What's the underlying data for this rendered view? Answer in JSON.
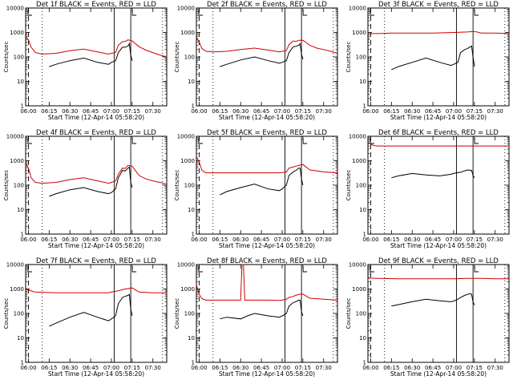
{
  "colors": {
    "events": "#000000",
    "lld": "#d00000",
    "frame": "#000000"
  },
  "shared": {
    "ylabel": "Counts/sec",
    "xlabel": "Start Time (12-Apr-14 05:58:20)",
    "xticks": [
      "06:00",
      "06:15",
      "06:30",
      "06:45",
      "07:00",
      "07:15",
      "07:30"
    ],
    "yticks": [
      "1",
      "10",
      "100",
      "1000",
      "10000"
    ]
  },
  "chart_data": [
    {
      "type": "line",
      "title": "Det 1f BLACK = Events, RED = LLD",
      "ylim": [
        1,
        10000
      ],
      "yscale": "log",
      "series": [
        {
          "x": [
            "05:58",
            "06:00",
            "06:02",
            "06:05",
            "06:10",
            "06:20",
            "06:30",
            "06:40",
            "06:50",
            "06:58",
            "07:00",
            "07:03",
            "07:05",
            "07:08",
            "07:10",
            "07:12",
            "07:15",
            "07:20",
            "07:25",
            "07:30",
            "07:35",
            "07:40"
          ],
          "values": [
            700,
            500,
            250,
            150,
            130,
            140,
            180,
            210,
            160,
            130,
            140,
            150,
            300,
            420,
            430,
            500,
            450,
            260,
            190,
            150,
            120,
            100
          ]
        },
        {
          "x": [
            "06:15",
            "06:20",
            "06:30",
            "06:40",
            "06:50",
            "06:58",
            "07:00",
            "07:03",
            "07:05",
            "07:08",
            "07:10",
            "07:12",
            "07:13",
            "07:14",
            "07:15"
          ],
          "values": [
            40,
            50,
            70,
            90,
            60,
            50,
            60,
            70,
            150,
            250,
            250,
            280,
            350,
            120,
            70
          ]
        }
      ]
    },
    {
      "type": "line",
      "title": "Det 2f BLACK = Events, RED = LLD",
      "ylim": [
        1,
        10000
      ],
      "yscale": "log",
      "series": [
        {
          "x": [
            "05:58",
            "06:00",
            "06:02",
            "06:05",
            "06:10",
            "06:20",
            "06:30",
            "06:40",
            "06:50",
            "06:58",
            "07:00",
            "07:03",
            "07:05",
            "07:08",
            "07:10",
            "07:12",
            "07:15",
            "07:20",
            "07:25",
            "07:30",
            "07:35",
            "07:40"
          ],
          "values": [
            600,
            400,
            220,
            170,
            160,
            170,
            200,
            230,
            190,
            160,
            170,
            180,
            320,
            450,
            430,
            480,
            480,
            300,
            230,
            200,
            170,
            140
          ]
        },
        {
          "x": [
            "06:15",
            "06:20",
            "06:30",
            "06:40",
            "06:50",
            "06:58",
            "07:00",
            "07:03",
            "07:05",
            "07:08",
            "07:10",
            "07:12",
            "07:13",
            "07:14",
            "07:15"
          ],
          "values": [
            40,
            50,
            75,
            100,
            70,
            55,
            60,
            70,
            150,
            260,
            270,
            300,
            350,
            130,
            80
          ]
        }
      ]
    },
    {
      "type": "line",
      "title": "Det 3f BLACK = Events, RED = LLD",
      "ylim": [
        1,
        10000
      ],
      "yscale": "log",
      "series": [
        {
          "x": [
            "05:58",
            "06:05",
            "06:15",
            "06:30",
            "06:45",
            "07:00",
            "07:10",
            "07:15",
            "07:20",
            "07:30",
            "07:40"
          ],
          "values": [
            900,
            900,
            950,
            950,
            950,
            1000,
            1050,
            1100,
            950,
            950,
            900
          ]
        },
        {
          "x": [
            "06:15",
            "06:20",
            "06:30",
            "06:40",
            "06:50",
            "06:58",
            "07:00",
            "07:03",
            "07:05",
            "07:08",
            "07:10",
            "07:12",
            "07:13",
            "07:14",
            "07:15"
          ],
          "values": [
            30,
            40,
            60,
            90,
            60,
            45,
            50,
            60,
            150,
            200,
            220,
            260,
            280,
            100,
            40
          ]
        }
      ]
    },
    {
      "type": "line",
      "title": "Det 4f BLACK = Events, RED = LLD",
      "ylim": [
        1,
        10000
      ],
      "yscale": "log",
      "series": [
        {
          "x": [
            "05:58",
            "06:00",
            "06:02",
            "06:05",
            "06:10",
            "06:20",
            "06:30",
            "06:40",
            "06:50",
            "06:58",
            "07:00",
            "07:03",
            "07:05",
            "07:08",
            "07:10",
            "07:12",
            "07:15",
            "07:20",
            "07:25",
            "07:30",
            "07:35",
            "07:40"
          ],
          "values": [
            800,
            500,
            200,
            130,
            120,
            130,
            170,
            200,
            150,
            120,
            130,
            150,
            280,
            500,
            480,
            650,
            600,
            250,
            180,
            150,
            130,
            110
          ]
        },
        {
          "x": [
            "06:15",
            "06:20",
            "06:30",
            "06:40",
            "06:50",
            "06:58",
            "07:00",
            "07:03",
            "07:05",
            "07:08",
            "07:10",
            "07:12",
            "07:13",
            "07:14",
            "07:15"
          ],
          "values": [
            35,
            45,
            65,
            80,
            55,
            45,
            50,
            70,
            200,
            400,
            380,
            500,
            550,
            130,
            80
          ]
        }
      ]
    },
    {
      "type": "line",
      "title": "Det 5f BLACK = Events, RED = LLD",
      "ylim": [
        1,
        10000
      ],
      "yscale": "log",
      "series": [
        {
          "x": [
            "05:58",
            "06:00",
            "06:02",
            "06:05",
            "06:20",
            "06:40",
            "06:58",
            "07:00",
            "07:03",
            "07:05",
            "07:08",
            "07:10",
            "07:12",
            "07:15",
            "07:20",
            "07:30",
            "07:40"
          ],
          "values": [
            1500,
            900,
            400,
            320,
            320,
            320,
            320,
            330,
            350,
            500,
            550,
            600,
            650,
            700,
            420,
            350,
            320
          ]
        },
        {
          "x": [
            "06:15",
            "06:20",
            "06:30",
            "06:40",
            "06:50",
            "06:58",
            "07:00",
            "07:03",
            "07:05",
            "07:08",
            "07:10",
            "07:12",
            "07:13",
            "07:14",
            "07:15"
          ],
          "values": [
            40,
            55,
            80,
            110,
            70,
            60,
            70,
            100,
            250,
            350,
            400,
            500,
            500,
            180,
            100
          ]
        }
      ]
    },
    {
      "type": "line",
      "title": "Det 6f BLACK = Events, RED = LLD",
      "ylim": [
        1,
        10000
      ],
      "yscale": "log",
      "series": [
        {
          "x": [
            "05:58",
            "06:00",
            "06:02",
            "06:05",
            "06:20",
            "06:40",
            "07:00",
            "07:20",
            "07:40"
          ],
          "values": [
            5500,
            4800,
            4200,
            4000,
            4000,
            4000,
            4000,
            4000,
            4000
          ]
        },
        {
          "x": [
            "06:15",
            "06:20",
            "06:30",
            "06:40",
            "06:50",
            "06:58",
            "07:00",
            "07:05",
            "07:10",
            "07:13",
            "07:14",
            "07:15"
          ],
          "values": [
            200,
            240,
            300,
            260,
            240,
            280,
            300,
            340,
            420,
            400,
            250,
            200
          ]
        }
      ]
    },
    {
      "type": "line",
      "title": "Det 7f BLACK = Events, RED = LLD",
      "ylim": [
        1,
        10000
      ],
      "yscale": "log",
      "series": [
        {
          "x": [
            "05:58",
            "06:00",
            "06:05",
            "06:20",
            "06:40",
            "06:58",
            "07:00",
            "07:05",
            "07:10",
            "07:15",
            "07:20",
            "07:30",
            "07:40"
          ],
          "values": [
            1100,
            900,
            750,
            700,
            700,
            700,
            750,
            850,
            1000,
            1100,
            750,
            700,
            700
          ]
        },
        {
          "x": [
            "06:15",
            "06:20",
            "06:30",
            "06:40",
            "06:50",
            "06:58",
            "07:00",
            "07:03",
            "07:05",
            "07:08",
            "07:10",
            "07:12",
            "07:13",
            "07:14",
            "07:15"
          ],
          "values": [
            30,
            40,
            70,
            110,
            70,
            50,
            60,
            80,
            250,
            450,
            500,
            550,
            600,
            150,
            80
          ]
        }
      ]
    },
    {
      "type": "line",
      "title": "Det 8f BLACK = Events, RED = LLD",
      "ylim": [
        1,
        10000
      ],
      "yscale": "log",
      "series": [
        {
          "x": [
            "05:58",
            "06:00",
            "06:02",
            "06:05",
            "06:20",
            "06:30",
            "06:31",
            "06:32",
            "06:33",
            "06:35",
            "06:50",
            "06:58",
            "07:00",
            "07:03",
            "07:05",
            "07:08",
            "07:10",
            "07:12",
            "07:15",
            "07:20",
            "07:30",
            "07:40"
          ],
          "values": [
            1500,
            600,
            400,
            350,
            350,
            350,
            10000,
            10000,
            350,
            350,
            350,
            340,
            350,
            380,
            450,
            500,
            550,
            600,
            620,
            420,
            380,
            350
          ]
        },
        {
          "x": [
            "06:15",
            "06:20",
            "06:30",
            "06:35",
            "06:40",
            "06:50",
            "06:58",
            "07:00",
            "07:03",
            "07:05",
            "07:08",
            "07:10",
            "07:12",
            "07:13",
            "07:14",
            "07:15"
          ],
          "values": [
            60,
            70,
            60,
            80,
            100,
            80,
            70,
            80,
            100,
            200,
            280,
            300,
            350,
            350,
            120,
            80
          ]
        }
      ]
    },
    {
      "type": "line",
      "title": "Det 9f BLACK = Events, RED = LLD",
      "ylim": [
        1,
        10000
      ],
      "yscale": "log",
      "series": [
        {
          "x": [
            "05:58",
            "06:05",
            "06:20",
            "06:40",
            "07:00",
            "07:10",
            "07:20",
            "07:30",
            "07:40"
          ],
          "values": [
            2800,
            2700,
            2600,
            2600,
            2600,
            2700,
            2700,
            2600,
            2600
          ]
        },
        {
          "x": [
            "06:15",
            "06:20",
            "06:30",
            "06:40",
            "06:50",
            "06:58",
            "07:00",
            "07:03",
            "07:05",
            "07:08",
            "07:10",
            "07:12",
            "07:13",
            "07:14",
            "07:15"
          ],
          "values": [
            200,
            230,
            300,
            380,
            330,
            300,
            320,
            380,
            450,
            550,
            600,
            650,
            600,
            300,
            220
          ]
        }
      ]
    }
  ]
}
